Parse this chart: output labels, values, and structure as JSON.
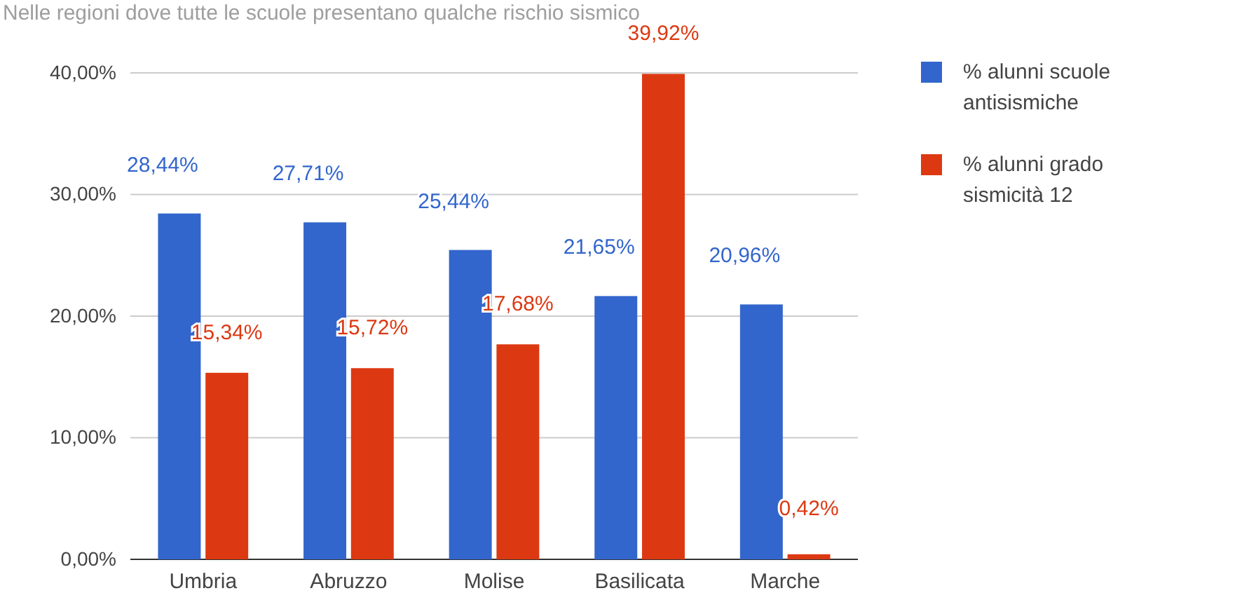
{
  "chart_data": {
    "type": "bar",
    "title": "Nelle regioni dove tutte le scuole presentano qualche rischio sismico",
    "categories": [
      "Umbria",
      "Abruzzo",
      "Molise",
      "Basilicata",
      "Marche"
    ],
    "series": [
      {
        "name": "% alunni scuole antisismiche",
        "color": "#3366cc",
        "values": [
          28.44,
          27.71,
          25.44,
          21.65,
          20.96
        ],
        "value_labels": [
          "28,44%",
          "27,71%",
          "25,44%",
          "21,65%",
          "20,96%"
        ]
      },
      {
        "name": "% alunni grado sismicità 12",
        "color": "#dc3912",
        "values": [
          15.34,
          15.72,
          17.68,
          39.92,
          0.42
        ],
        "value_labels": [
          "15,34%",
          "15,72%",
          "17,68%",
          "39,92%",
          "0,42%"
        ]
      }
    ],
    "ylim": [
      0,
      40
    ],
    "yticks": [
      {
        "value": 0,
        "label": "0,00%"
      },
      {
        "value": 10,
        "label": "10,00%"
      },
      {
        "value": 20,
        "label": "20,00%"
      },
      {
        "value": 30,
        "label": "30,00%"
      },
      {
        "value": 40,
        "label": "40,00%"
      }
    ],
    "grid": "y",
    "legend": "right"
  }
}
